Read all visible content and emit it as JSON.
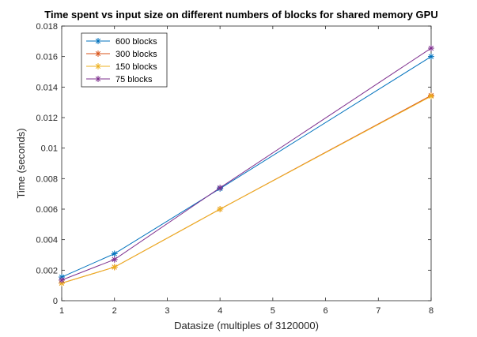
{
  "chart_data": {
    "type": "line",
    "title": "Time spent vs input size on different numbers of blocks for shared memory GPU",
    "xlabel": "Datasize (multiples of 3120000)",
    "ylabel": "Time (seconds)",
    "xlim": [
      1,
      8
    ],
    "ylim": [
      0,
      0.018
    ],
    "xticks": [
      1,
      2,
      3,
      4,
      5,
      6,
      7,
      8
    ],
    "xtick_labels": [
      "1",
      "2",
      "3",
      "4",
      "5",
      "6",
      "7",
      "8"
    ],
    "yticks": [
      0,
      0.002,
      0.004,
      0.006,
      0.008,
      0.01,
      0.012,
      0.014,
      0.016,
      0.018
    ],
    "ytick_labels": [
      "0",
      "0.002",
      "0.004",
      "0.006",
      "0.008",
      "0.01",
      "0.012",
      "0.014",
      "0.016",
      "0.018"
    ],
    "grid": false,
    "legend_position": "top-left",
    "marker": "asterisk",
    "x": [
      1,
      2,
      4,
      8
    ],
    "series": [
      {
        "name": "600 blocks",
        "color": "#0072BD",
        "values": [
          0.00155,
          0.00308,
          0.00735,
          0.016
        ]
      },
      {
        "name": "300 blocks",
        "color": "#D95319",
        "values": [
          0.00115,
          0.0022,
          0.006,
          0.01345
        ]
      },
      {
        "name": "150 blocks",
        "color": "#EDB120",
        "values": [
          0.00115,
          0.0022,
          0.006,
          0.0134
        ]
      },
      {
        "name": "75 blocks",
        "color": "#7E2F8E",
        "values": [
          0.00135,
          0.0027,
          0.0074,
          0.01655
        ]
      }
    ]
  }
}
